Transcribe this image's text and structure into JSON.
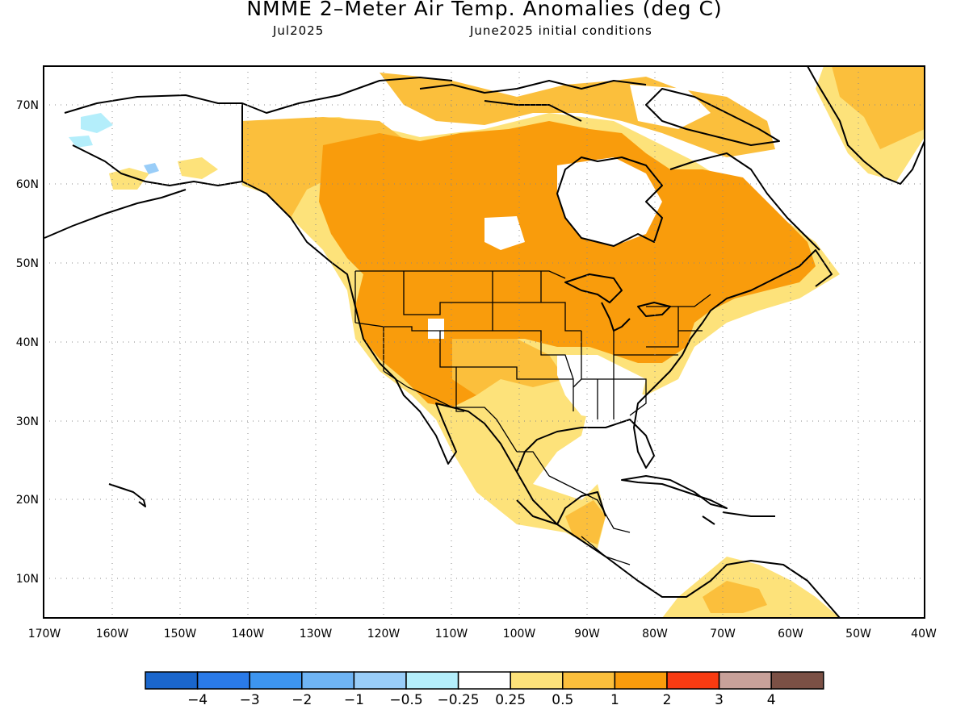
{
  "title": "NMME 2–Meter Air Temp. Anomalies (deg C)",
  "valid_month": "Jul2025",
  "init_conditions": "June2025 initial conditions",
  "lat_labels": [
    "70N",
    "60N",
    "50N",
    "40N",
    "30N",
    "20N",
    "10N"
  ],
  "lon_labels": [
    "170W",
    "160W",
    "150W",
    "140W",
    "130W",
    "120W",
    "110W",
    "100W",
    "90W",
    "80W",
    "70W",
    "60W",
    "50W",
    "40W"
  ],
  "colorbar": {
    "colors": [
      "#1a66cc",
      "#2a7ae8",
      "#3d95f0",
      "#6fb4f4",
      "#99cdf8",
      "#b4eefb",
      "#ffffff",
      "#fde27a",
      "#fbbf3c",
      "#f99c0c",
      "#f83b12",
      "#c8a19a",
      "#7b5045"
    ],
    "labels": [
      "−4",
      "−3",
      "−2",
      "−1",
      "−0.5",
      "−0.25",
      "0.25",
      "0.5",
      "1",
      "2",
      "3",
      "4"
    ]
  }
}
